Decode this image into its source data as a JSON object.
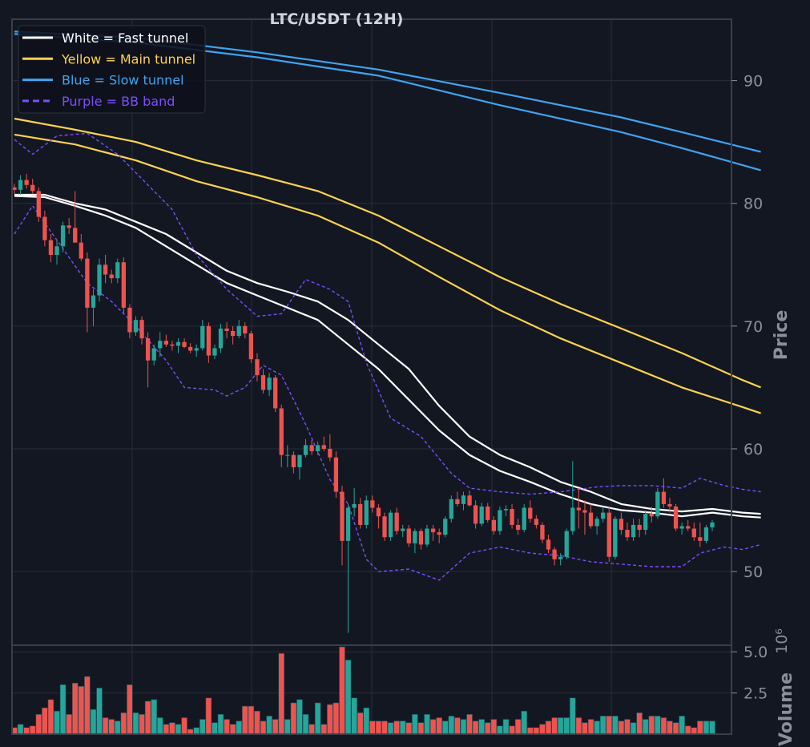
{
  "chart_data": {
    "type": "candlestick",
    "title": "LTC/USDT (12H)",
    "price_axis": {
      "label": "Price",
      "ylim": [
        44,
        95
      ],
      "ticks": [
        50,
        60,
        70,
        80,
        90
      ]
    },
    "volume_axis": {
      "label": "Volume",
      "exponent_label": "10⁶",
      "ylim": [
        0,
        5.4
      ],
      "ticks": [
        "2.5",
        "5.0"
      ]
    },
    "legend": {
      "placement": "top-left",
      "entries": [
        {
          "label": "White = Fast tunnel",
          "color": "#ffffff",
          "dash": false
        },
        {
          "label": "Yellow = Main tunnel",
          "color": "#fdd34d",
          "dash": false
        },
        {
          "label": "Blue = Slow tunnel",
          "color": "#3fa4f0",
          "dash": false
        },
        {
          "label": "Purple = BB band",
          "color": "#7c4dff",
          "dash": true
        }
      ]
    },
    "colors": {
      "up": "#26a69a",
      "down": "#ef5350",
      "grid": "#2a2e39",
      "frame": "#3a3e48"
    },
    "candles_ohlcv": [
      [
        81.3,
        81.6,
        80.8,
        81.1,
        0.4
      ],
      [
        81.1,
        82.3,
        80.7,
        81.9,
        0.6
      ],
      [
        81.9,
        82.4,
        81.2,
        81.5,
        0.4
      ],
      [
        81.5,
        82.0,
        80.8,
        81.0,
        0.5
      ],
      [
        81.0,
        81.3,
        78.5,
        78.9,
        1.2
      ],
      [
        78.9,
        79.4,
        76.5,
        77.0,
        1.6
      ],
      [
        77.0,
        77.5,
        75.2,
        75.8,
        2.1
      ],
      [
        75.8,
        77.0,
        75.0,
        76.5,
        1.4
      ],
      [
        76.5,
        78.5,
        76.0,
        78.2,
        3.0
      ],
      [
        78.2,
        78.8,
        77.5,
        78.0,
        1.2
      ],
      [
        78.0,
        81.0,
        77.0,
        76.8,
        3.1
      ],
      [
        76.8,
        77.5,
        75.3,
        75.5,
        2.9
      ],
      [
        75.5,
        76.0,
        69.5,
        71.5,
        3.5
      ],
      [
        71.5,
        73.0,
        70.0,
        72.5,
        1.5
      ],
      [
        72.5,
        75.5,
        72.0,
        75.0,
        2.8
      ],
      [
        75.0,
        75.8,
        73.5,
        74.2,
        1.0
      ],
      [
        74.2,
        74.6,
        73.5,
        73.9,
        0.9
      ],
      [
        73.9,
        75.5,
        73.5,
        75.2,
        0.8
      ],
      [
        75.2,
        75.6,
        71.0,
        71.5,
        1.3
      ],
      [
        71.5,
        71.8,
        69.0,
        69.5,
        3.0
      ],
      [
        69.5,
        70.8,
        69.2,
        70.5,
        1.3
      ],
      [
        70.5,
        70.8,
        68.5,
        69.0,
        1.2
      ],
      [
        69.0,
        69.5,
        65.0,
        67.2,
        2.0
      ],
      [
        67.2,
        68.5,
        66.8,
        68.2,
        2.1
      ],
      [
        68.2,
        69.5,
        67.5,
        68.8,
        1.0
      ],
      [
        68.8,
        69.3,
        68.3,
        68.5,
        0.6
      ],
      [
        68.5,
        68.8,
        68.0,
        68.4,
        0.7
      ],
      [
        68.4,
        69.0,
        67.8,
        68.7,
        0.6
      ],
      [
        68.7,
        69.0,
        68.2,
        68.3,
        1.0
      ],
      [
        68.3,
        68.6,
        67.8,
        68.0,
        0.3
      ],
      [
        68.0,
        68.5,
        67.5,
        68.2,
        0.4
      ],
      [
        68.2,
        70.5,
        68.0,
        70.0,
        0.9
      ],
      [
        70.0,
        70.3,
        67.0,
        67.6,
        2.2
      ],
      [
        67.6,
        68.5,
        67.3,
        68.2,
        0.7
      ],
      [
        68.2,
        70.2,
        67.8,
        69.8,
        1.2
      ],
      [
        69.8,
        70.3,
        69.0,
        69.6,
        0.9
      ],
      [
        69.6,
        70.0,
        68.5,
        69.2,
        0.6
      ],
      [
        69.2,
        70.5,
        69.0,
        70.0,
        0.8
      ],
      [
        70.0,
        70.3,
        69.0,
        69.4,
        1.7
      ],
      [
        69.4,
        69.6,
        67.0,
        67.3,
        1.7
      ],
      [
        67.3,
        67.8,
        65.5,
        66.0,
        1.4
      ],
      [
        66.0,
        66.5,
        64.5,
        64.8,
        0.8
      ],
      [
        64.8,
        66.2,
        64.3,
        65.8,
        1.1
      ],
      [
        65.8,
        66.0,
        63.0,
        63.3,
        0.9
      ],
      [
        63.3,
        63.6,
        58.5,
        59.5,
        4.9
      ],
      [
        59.5,
        60.3,
        58.5,
        59.5,
        0.9
      ],
      [
        59.5,
        59.8,
        58.0,
        58.5,
        1.9
      ],
      [
        58.5,
        59.5,
        57.5,
        59.5,
        2.1
      ],
      [
        59.5,
        60.8,
        59.3,
        60.3,
        1.2
      ],
      [
        60.3,
        60.7,
        59.5,
        59.8,
        0.6
      ],
      [
        59.8,
        60.6,
        59.5,
        60.3,
        1.9
      ],
      [
        60.3,
        61.0,
        59.8,
        60.0,
        0.6
      ],
      [
        60.0,
        61.2,
        59.0,
        59.3,
        1.8
      ],
      [
        59.3,
        59.8,
        56.0,
        56.5,
        1.9
      ],
      [
        56.5,
        57.0,
        50.5,
        52.5,
        5.3
      ],
      [
        52.5,
        55.5,
        45.0,
        55.2,
        4.5
      ],
      [
        55.2,
        56.8,
        54.5,
        55.5,
        2.2
      ],
      [
        55.5,
        56.0,
        53.5,
        53.8,
        1.3
      ],
      [
        53.8,
        56.2,
        53.5,
        55.8,
        1.6
      ],
      [
        55.8,
        56.2,
        54.8,
        55.2,
        0.8
      ],
      [
        55.2,
        55.5,
        53.5,
        54.5,
        0.8
      ],
      [
        54.5,
        54.8,
        52.5,
        52.8,
        0.8
      ],
      [
        52.8,
        55.0,
        52.5,
        54.8,
        0.7
      ],
      [
        54.8,
        55.2,
        53.0,
        53.3,
        0.8
      ],
      [
        53.3,
        53.8,
        52.8,
        53.5,
        0.8
      ],
      [
        53.5,
        53.8,
        52.0,
        52.3,
        0.7
      ],
      [
        52.3,
        53.5,
        51.5,
        53.3,
        1.2
      ],
      [
        53.3,
        53.5,
        51.8,
        52.2,
        0.7
      ],
      [
        52.2,
        53.8,
        52.0,
        53.5,
        1.2
      ],
      [
        53.5,
        53.8,
        52.5,
        53.2,
        0.9
      ],
      [
        53.2,
        53.5,
        52.3,
        53.0,
        1.0
      ],
      [
        53.0,
        54.5,
        52.8,
        54.3,
        0.8
      ],
      [
        54.3,
        56.2,
        54.0,
        55.9,
        1.1
      ],
      [
        55.9,
        56.5,
        55.3,
        55.5,
        1.0
      ],
      [
        55.5,
        56.5,
        55.0,
        56.2,
        0.9
      ],
      [
        56.2,
        56.6,
        55.3,
        55.4,
        1.2
      ],
      [
        55.4,
        55.8,
        53.5,
        53.9,
        0.8
      ],
      [
        53.9,
        55.6,
        53.7,
        55.3,
        0.9
      ],
      [
        55.3,
        55.6,
        54.0,
        54.2,
        0.7
      ],
      [
        54.2,
        54.5,
        53.0,
        53.3,
        0.9
      ],
      [
        53.3,
        55.3,
        53.0,
        55.0,
        0.5
      ],
      [
        55.0,
        55.4,
        54.5,
        55.1,
        0.9
      ],
      [
        55.1,
        55.5,
        53.5,
        53.8,
        0.5
      ],
      [
        53.8,
        54.3,
        53.0,
        53.4,
        0.9
      ],
      [
        53.4,
        55.5,
        53.2,
        55.2,
        1.4
      ],
      [
        55.2,
        55.8,
        54.0,
        54.3,
        0.4
      ],
      [
        54.3,
        54.6,
        53.5,
        53.8,
        0.4
      ],
      [
        53.8,
        54.0,
        52.3,
        52.6,
        0.6
      ],
      [
        52.6,
        53.0,
        51.5,
        51.8,
        0.8
      ],
      [
        51.8,
        52.0,
        50.5,
        51.0,
        1.0
      ],
      [
        51.0,
        51.5,
        50.5,
        51.2,
        1.0
      ],
      [
        51.2,
        53.5,
        51.0,
        53.3,
        1.0
      ],
      [
        53.3,
        59.0,
        53.0,
        55.2,
        2.2
      ],
      [
        55.2,
        56.8,
        53.5,
        55.0,
        1.0
      ],
      [
        55.0,
        55.8,
        53.0,
        54.8,
        0.7
      ],
      [
        54.8,
        55.5,
        53.5,
        53.7,
        0.9
      ],
      [
        53.7,
        54.5,
        53.0,
        54.3,
        0.8
      ],
      [
        54.3,
        55.2,
        54.0,
        54.8,
        1.1
      ],
      [
        54.8,
        55.3,
        50.8,
        51.2,
        1.1
      ],
      [
        51.2,
        54.5,
        51.0,
        54.3,
        1.1
      ],
      [
        54.3,
        54.8,
        53.0,
        53.4,
        0.8
      ],
      [
        53.4,
        54.0,
        52.5,
        52.8,
        0.9
      ],
      [
        52.8,
        54.3,
        52.5,
        53.8,
        0.7
      ],
      [
        53.8,
        54.3,
        52.8,
        53.4,
        1.3
      ],
      [
        53.4,
        55.0,
        53.0,
        54.7,
        0.9
      ],
      [
        54.7,
        55.3,
        54.0,
        54.5,
        1.1
      ],
      [
        54.5,
        56.8,
        54.3,
        56.5,
        1.1
      ],
      [
        56.5,
        57.6,
        55.2,
        55.5,
        1.0
      ],
      [
        55.5,
        56.0,
        54.8,
        55.3,
        0.8
      ],
      [
        55.3,
        55.5,
        53.3,
        53.5,
        0.7
      ],
      [
        53.5,
        54.0,
        53.0,
        53.7,
        1.1
      ],
      [
        53.7,
        54.2,
        53.3,
        53.5,
        0.5
      ],
      [
        53.5,
        54.0,
        52.5,
        52.8,
        0.4
      ],
      [
        52.8,
        54.0,
        52.0,
        52.5,
        0.8
      ],
      [
        52.5,
        53.8,
        52.3,
        53.6,
        0.8
      ],
      [
        53.6,
        54.2,
        53.3,
        54.0,
        0.8
      ]
    ],
    "lines": {
      "fast_upper": [
        [
          0,
          80.7
        ],
        [
          5,
          80.7
        ],
        [
          10,
          80.0
        ],
        [
          15,
          79.5
        ],
        [
          20,
          78.5
        ],
        [
          25,
          77.5
        ],
        [
          30,
          76.0
        ],
        [
          35,
          74.5
        ],
        [
          40,
          73.5
        ],
        [
          45,
          72.8
        ],
        [
          50,
          72.0
        ],
        [
          55,
          70.5
        ],
        [
          60,
          68.5
        ],
        [
          65,
          66.5
        ],
        [
          70,
          63.5
        ],
        [
          75,
          61.0
        ],
        [
          80,
          59.5
        ],
        [
          85,
          58.5
        ],
        [
          90,
          57.3
        ],
        [
          95,
          56.5
        ],
        [
          100,
          55.5
        ],
        [
          105,
          55.1
        ],
        [
          110,
          54.9
        ],
        [
          115,
          55.1
        ],
        [
          120,
          54.8
        ],
        [
          123,
          54.7
        ]
      ],
      "fast_lower": [
        [
          0,
          80.6
        ],
        [
          5,
          80.5
        ],
        [
          10,
          79.8
        ],
        [
          15,
          79.0
        ],
        [
          20,
          78.0
        ],
        [
          25,
          76.5
        ],
        [
          30,
          75.0
        ],
        [
          35,
          73.5
        ],
        [
          40,
          72.5
        ],
        [
          45,
          71.5
        ],
        [
          50,
          70.5
        ],
        [
          55,
          68.5
        ],
        [
          60,
          66.5
        ],
        [
          65,
          64.0
        ],
        [
          70,
          61.5
        ],
        [
          75,
          59.5
        ],
        [
          80,
          58.2
        ],
        [
          85,
          57.3
        ],
        [
          90,
          56.3
        ],
        [
          95,
          55.5
        ],
        [
          100,
          55.0
        ],
        [
          105,
          54.8
        ],
        [
          110,
          54.5
        ],
        [
          115,
          54.8
        ],
        [
          120,
          54.5
        ],
        [
          123,
          54.4
        ]
      ],
      "main_upper": [
        [
          0,
          86.9
        ],
        [
          10,
          86.0
        ],
        [
          20,
          85.0
        ],
        [
          30,
          83.5
        ],
        [
          40,
          82.3
        ],
        [
          50,
          81.0
        ],
        [
          60,
          79.0
        ],
        [
          70,
          76.5
        ],
        [
          80,
          74.0
        ],
        [
          90,
          71.8
        ],
        [
          100,
          69.8
        ],
        [
          110,
          67.8
        ],
        [
          120,
          65.6
        ],
        [
          123,
          65.0
        ]
      ],
      "main_lower": [
        [
          0,
          85.6
        ],
        [
          10,
          84.8
        ],
        [
          20,
          83.5
        ],
        [
          30,
          81.8
        ],
        [
          40,
          80.5
        ],
        [
          50,
          79.0
        ],
        [
          60,
          76.8
        ],
        [
          70,
          74.0
        ],
        [
          80,
          71.3
        ],
        [
          90,
          69.0
        ],
        [
          100,
          67.0
        ],
        [
          110,
          65.0
        ],
        [
          120,
          63.4
        ],
        [
          123,
          62.9
        ]
      ],
      "slow_upper": [
        [
          0,
          94.0
        ],
        [
          20,
          93.5
        ],
        [
          40,
          92.3
        ],
        [
          60,
          90.9
        ],
        [
          80,
          89.0
        ],
        [
          100,
          87.0
        ],
        [
          110,
          85.8
        ],
        [
          123,
          84.2
        ]
      ],
      "slow_lower": [
        [
          0,
          93.8
        ],
        [
          20,
          93.1
        ],
        [
          40,
          91.9
        ],
        [
          60,
          90.4
        ],
        [
          80,
          88.0
        ],
        [
          100,
          85.8
        ],
        [
          110,
          84.5
        ],
        [
          123,
          82.7
        ]
      ],
      "bb_upper": [
        [
          0,
          85.2
        ],
        [
          3,
          84.0
        ],
        [
          7,
          85.5
        ],
        [
          12,
          85.7
        ],
        [
          17,
          84.0
        ],
        [
          22,
          81.5
        ],
        [
          26,
          79.5
        ],
        [
          30,
          75.8
        ],
        [
          35,
          73.0
        ],
        [
          40,
          70.8
        ],
        [
          44,
          71.0
        ],
        [
          48,
          73.8
        ],
        [
          52,
          73.0
        ],
        [
          55,
          72.0
        ],
        [
          58,
          67.0
        ],
        [
          62,
          62.5
        ],
        [
          67,
          61.0
        ],
        [
          72,
          58.0
        ],
        [
          75,
          56.8
        ],
        [
          80,
          56.5
        ],
        [
          85,
          56.3
        ],
        [
          90,
          56.5
        ],
        [
          96,
          56.9
        ],
        [
          100,
          57.0
        ],
        [
          105,
          57.0
        ],
        [
          110,
          56.8
        ],
        [
          113,
          57.6
        ],
        [
          117,
          57.0
        ],
        [
          120,
          56.7
        ],
        [
          123,
          56.5
        ]
      ],
      "bb_lower": [
        [
          0,
          77.5
        ],
        [
          3,
          79.8
        ],
        [
          7,
          77.0
        ],
        [
          12,
          73.5
        ],
        [
          16,
          72.0
        ],
        [
          20,
          70.0
        ],
        [
          25,
          67.2
        ],
        [
          28,
          65.0
        ],
        [
          33,
          64.8
        ],
        [
          35,
          64.3
        ],
        [
          38,
          65.0
        ],
        [
          41,
          66.8
        ],
        [
          44,
          66.0
        ],
        [
          48,
          62.0
        ],
        [
          52,
          57.5
        ],
        [
          55,
          55.5
        ],
        [
          58,
          51.0
        ],
        [
          60,
          50.0
        ],
        [
          65,
          50.2
        ],
        [
          70,
          49.3
        ],
        [
          75,
          51.5
        ],
        [
          80,
          52.0
        ],
        [
          85,
          51.5
        ],
        [
          90,
          51.3
        ],
        [
          95,
          50.8
        ],
        [
          100,
          50.6
        ],
        [
          105,
          50.4
        ],
        [
          110,
          50.4
        ],
        [
          113,
          51.5
        ],
        [
          117,
          52.0
        ],
        [
          120,
          51.8
        ],
        [
          123,
          52.2
        ]
      ]
    }
  }
}
